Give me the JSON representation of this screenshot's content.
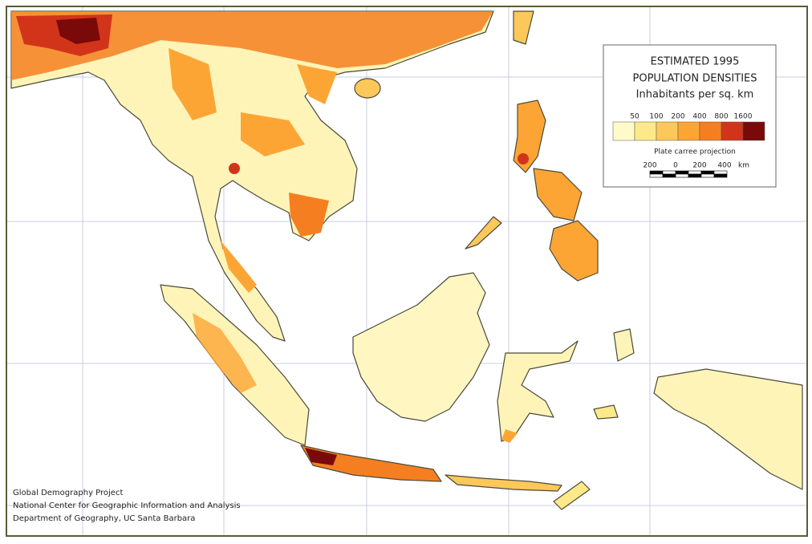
{
  "legend": {
    "title_lines": [
      "ESTIMATED 1995",
      "POPULATION DENSITIES",
      "Inhabitants per sq. km"
    ],
    "thresholds": [
      50,
      100,
      200,
      400,
      800,
      1600
    ],
    "colors": [
      "#fffbc8",
      "#fde98a",
      "#fdc85a",
      "#fca534",
      "#f57f20",
      "#d2341a",
      "#7a0a0a"
    ],
    "projection": "Plate carree projection",
    "scale": {
      "labels": [
        200,
        0,
        200,
        400
      ],
      "unit": "km"
    }
  },
  "credits": [
    "Global Demography Project",
    "National Center for Geographic Information and Analysis",
    "Department of Geography, UC Santa Barbara"
  ]
}
